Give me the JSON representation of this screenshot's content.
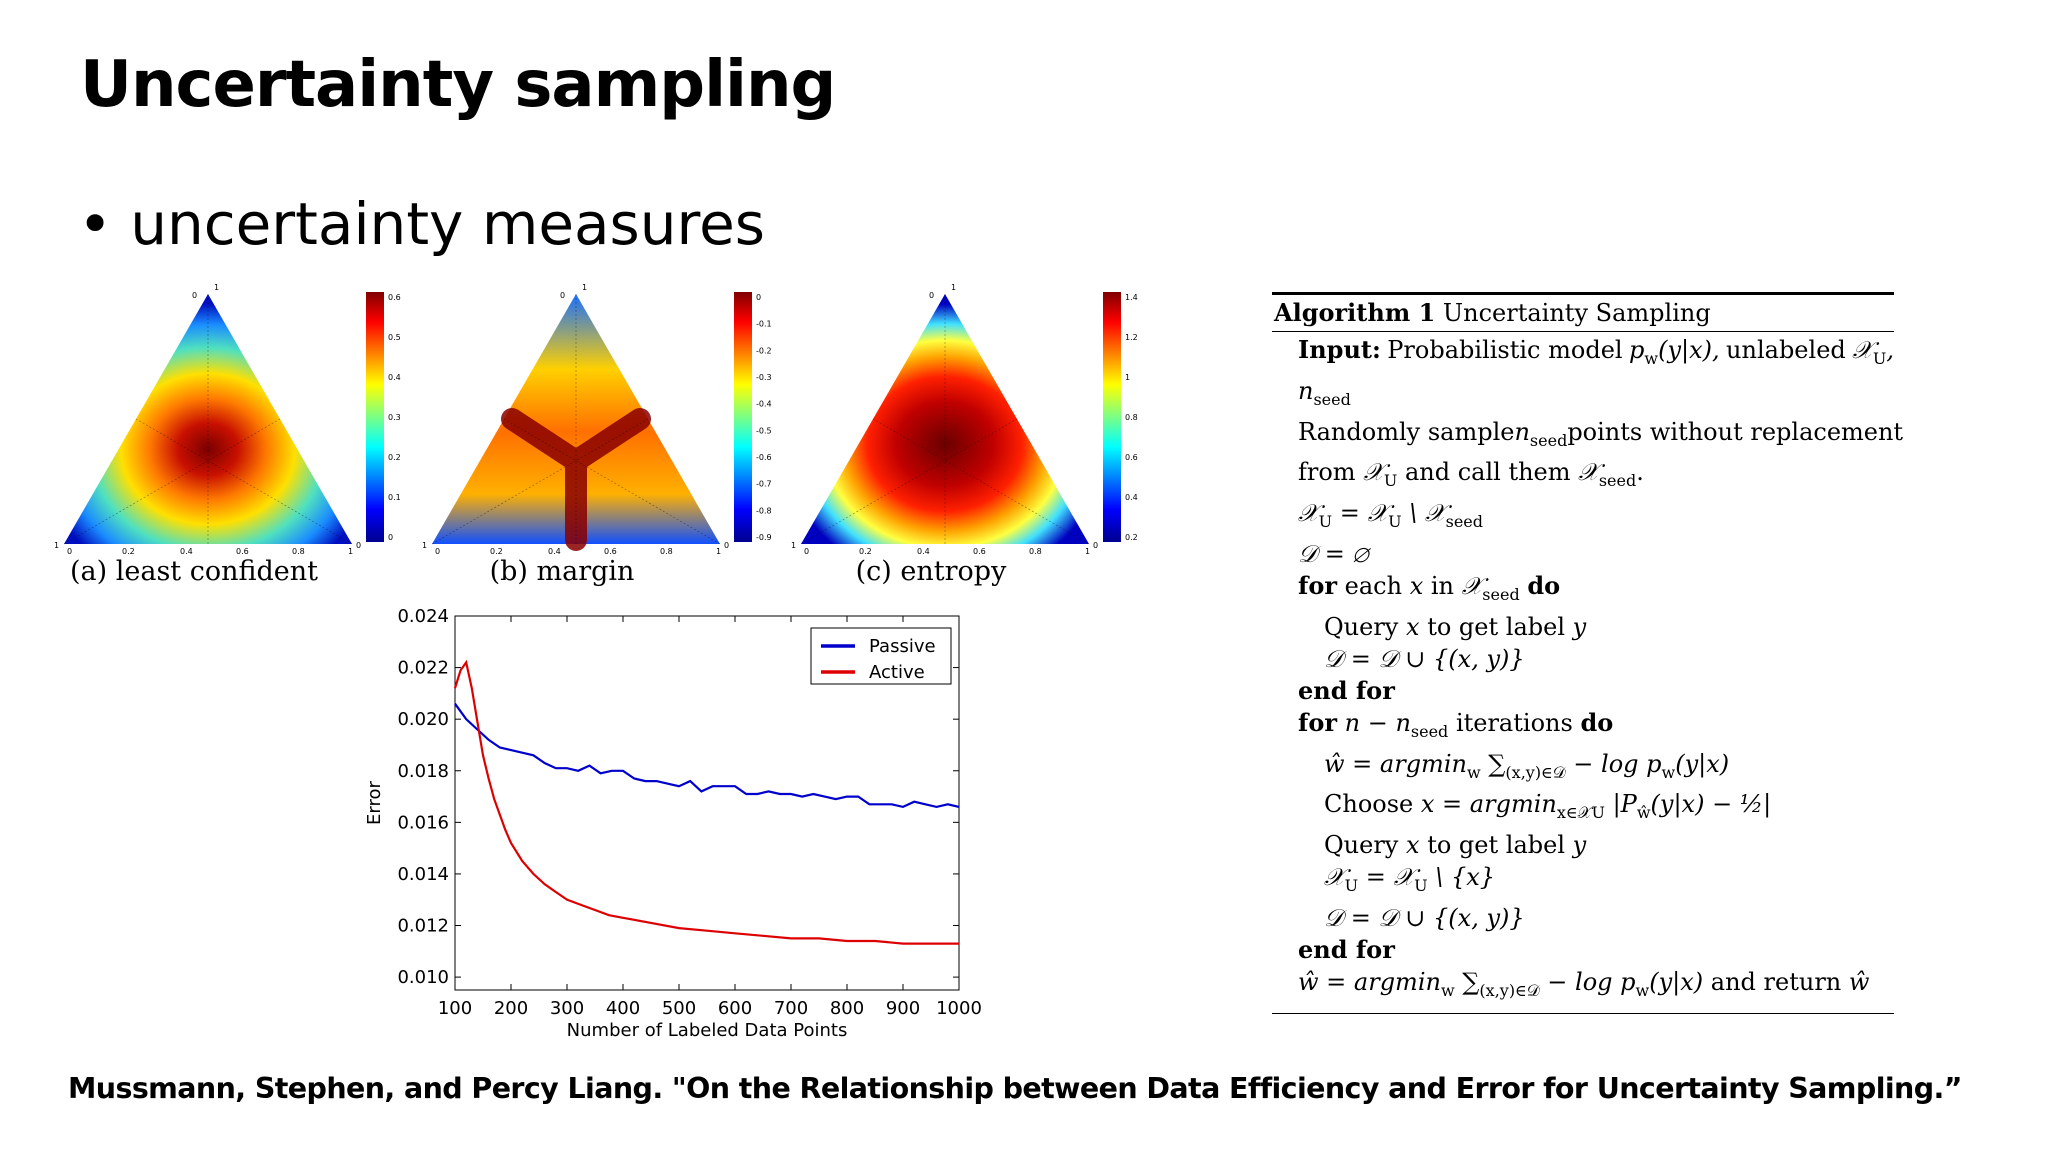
{
  "slide": {
    "title": "Uncertainty sampling",
    "bullet": "uncertainty measures",
    "citation": "Mussmann, Stephen, and Percy Liang. \"On the Relationship between Data Efficiency and Error for Uncertainty Sampling.”"
  },
  "simplex_figures": [
    {
      "caption": "(a) least confident",
      "colorbar_ticks": [
        "0.6",
        "0.5",
        "0.4",
        "0.3",
        "0.2",
        "0.1",
        "0"
      ]
    },
    {
      "caption": "(b) margin",
      "colorbar_ticks": [
        "0",
        "-0.1",
        "-0.2",
        "-0.3",
        "-0.4",
        "-0.5",
        "-0.6",
        "-0.7",
        "-0.8",
        "-0.9"
      ]
    },
    {
      "caption": "(c) entropy",
      "colorbar_ticks": [
        "1.4",
        "1.2",
        "1",
        "0.8",
        "0.6",
        "0.4",
        "0.2"
      ]
    }
  ],
  "simplex_axis_ticks": [
    "0",
    "0.2",
    "0.4",
    "0.6",
    "0.8",
    "1"
  ],
  "algorithm": {
    "label": "Algorithm 1",
    "title": "Uncertainty Sampling",
    "input_kw": "Input:",
    "input_text_1": "Probabilistic model",
    "input_text_2": "unlabeled",
    "line_random_1": "Randomly sample",
    "line_random_2": "points without replacement",
    "line_from_1": "from",
    "line_from_2": "and call them",
    "for_kw": "for",
    "each_in": "each",
    "in_kw": "in",
    "do_kw": "do",
    "query_1": "Query",
    "query_2": "to get label",
    "end_for": "end for",
    "iterations": "iterations",
    "choose": "Choose",
    "and_return": "and return"
  },
  "chart_data": {
    "type": "line",
    "xlabel": "Number of Labeled Data Points",
    "ylabel": "Error",
    "xlim": [
      100,
      1000
    ],
    "ylim": [
      0.0095,
      0.024
    ],
    "xticks": [
      100,
      200,
      300,
      400,
      500,
      600,
      700,
      800,
      900,
      1000
    ],
    "yticks": [
      0.01,
      0.012,
      0.014,
      0.016,
      0.018,
      0.02,
      0.022,
      0.024
    ],
    "ytick_labels": [
      "0.010",
      "0.012",
      "0.014",
      "0.016",
      "0.018",
      "0.020",
      "0.022",
      "0.024"
    ],
    "grid": false,
    "legend_position": "top-right",
    "series": [
      {
        "name": "Passive",
        "color": "#0000cc",
        "x": [
          100,
          120,
          140,
          160,
          180,
          200,
          220,
          240,
          260,
          280,
          300,
          320,
          340,
          360,
          380,
          400,
          420,
          440,
          460,
          480,
          500,
          520,
          540,
          560,
          580,
          600,
          620,
          640,
          660,
          680,
          700,
          720,
          740,
          760,
          780,
          800,
          820,
          840,
          860,
          880,
          900,
          920,
          940,
          960,
          980,
          1000
        ],
        "y": [
          0.0206,
          0.02,
          0.0196,
          0.0192,
          0.0189,
          0.0188,
          0.0187,
          0.0186,
          0.0183,
          0.0181,
          0.0181,
          0.018,
          0.0182,
          0.0179,
          0.018,
          0.018,
          0.0177,
          0.0176,
          0.0176,
          0.0175,
          0.0174,
          0.0176,
          0.0172,
          0.0174,
          0.0174,
          0.0174,
          0.0171,
          0.0171,
          0.0172,
          0.0171,
          0.0171,
          0.017,
          0.0171,
          0.017,
          0.0169,
          0.017,
          0.017,
          0.0167,
          0.0167,
          0.0167,
          0.0166,
          0.0168,
          0.0167,
          0.0166,
          0.0167,
          0.0166
        ]
      },
      {
        "name": "Active",
        "color": "#dd0000",
        "x": [
          100,
          110,
          120,
          130,
          140,
          150,
          160,
          170,
          180,
          190,
          200,
          220,
          240,
          260,
          280,
          300,
          325,
          350,
          375,
          400,
          450,
          500,
          550,
          600,
          650,
          700,
          750,
          800,
          850,
          900,
          950,
          1000
        ],
        "y": [
          0.0212,
          0.0219,
          0.0222,
          0.0212,
          0.0199,
          0.0186,
          0.0177,
          0.0169,
          0.0163,
          0.0157,
          0.0152,
          0.0145,
          0.014,
          0.0136,
          0.0133,
          0.013,
          0.0128,
          0.0126,
          0.0124,
          0.0123,
          0.0121,
          0.0119,
          0.0118,
          0.0117,
          0.0116,
          0.0115,
          0.0115,
          0.0114,
          0.0114,
          0.0113,
          0.0113,
          0.0113
        ]
      }
    ]
  }
}
